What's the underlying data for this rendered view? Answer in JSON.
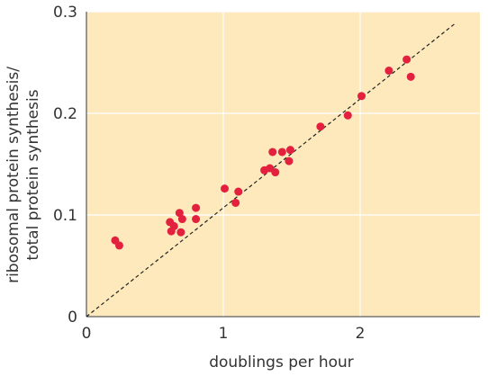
{
  "chart_data": {
    "type": "scatter",
    "xlabel": "doublings per hour",
    "ylabel": [
      "ribosomal protein synthesis/",
      "total protein synthesis"
    ],
    "xlim": [
      0,
      2.875
    ],
    "ylim": [
      0,
      0.3
    ],
    "xticks": [
      0,
      1,
      2
    ],
    "yticks": [
      0,
      0.1,
      0.2,
      0.3
    ],
    "grid": true,
    "background": "#fde9bb",
    "color": "#e3203d",
    "x": [
      0.21,
      0.24,
      0.61,
      0.64,
      0.62,
      0.68,
      0.7,
      0.69,
      0.8,
      0.8,
      1.01,
      1.11,
      1.09,
      1.3,
      1.34,
      1.36,
      1.38,
      1.43,
      1.49,
      1.48,
      1.71,
      1.91,
      2.01,
      2.21,
      2.34,
      2.37
    ],
    "values": [
      0.075,
      0.07,
      0.093,
      0.089,
      0.084,
      0.102,
      0.096,
      0.083,
      0.107,
      0.096,
      0.126,
      0.123,
      0.112,
      0.144,
      0.146,
      0.162,
      0.142,
      0.162,
      0.164,
      0.153,
      0.187,
      0.198,
      0.217,
      0.242,
      0.253,
      0.236
    ],
    "reference_line": {
      "x": [
        0,
        2.69
      ],
      "values": [
        0,
        0.288
      ],
      "color": "#222"
    }
  }
}
